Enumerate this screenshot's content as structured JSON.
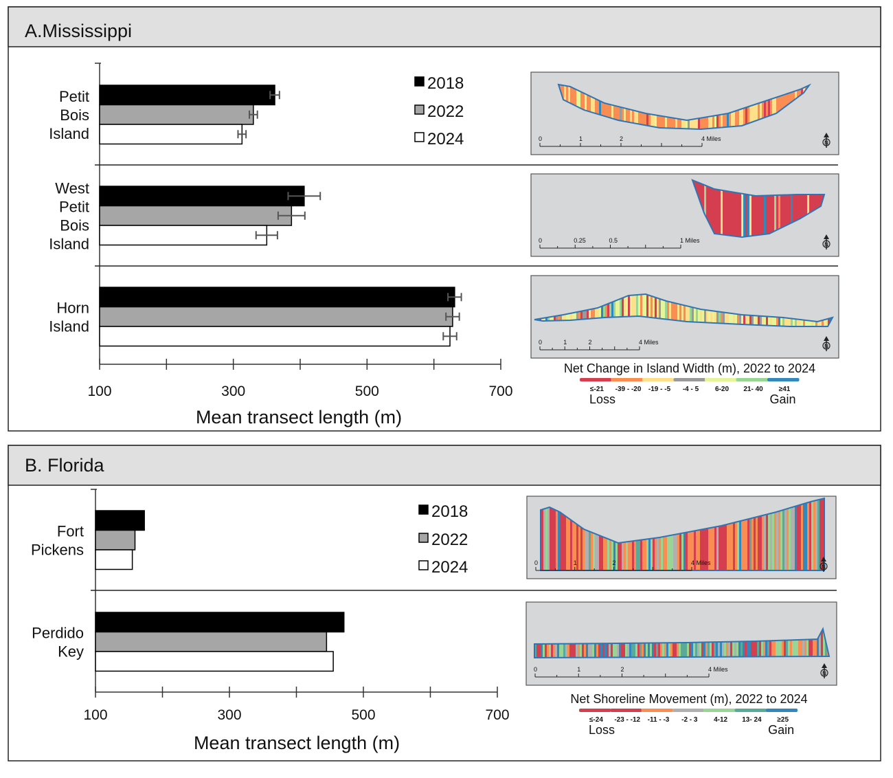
{
  "chart_data": [
    {
      "type": "bar",
      "orientation": "horizontal",
      "title": "A.Mississippi",
      "categories": [
        "Petit Bois Island",
        "West Petit Bois Island",
        "Horn Island"
      ],
      "category_lines": [
        [
          "Petit",
          "Bois",
          "Island"
        ],
        [
          "West",
          "Petit",
          "Bois",
          "Island"
        ],
        [
          "Horn",
          "Island"
        ]
      ],
      "series": [
        {
          "name": "2018",
          "color": "#000000",
          "values": [
            362,
            406,
            631
          ],
          "error": [
            7,
            24,
            10
          ]
        },
        {
          "name": "2022",
          "color": "#a6a6a6",
          "values": [
            330,
            387,
            628
          ],
          "error": [
            6,
            20,
            10
          ]
        },
        {
          "name": "2024",
          "color": "#ffffff",
          "values": [
            313,
            350,
            624
          ],
          "error": [
            6,
            16,
            10
          ]
        }
      ],
      "xlabel": "Mean transect length (m)",
      "xlim": [
        100,
        700
      ],
      "xticks": [
        100,
        200,
        300,
        400,
        500,
        600,
        700
      ],
      "xtick_labels": [
        "100",
        "300",
        "500",
        "700"
      ],
      "legend_position": "top-right",
      "maps": [
        {
          "scale": [
            "0",
            "1",
            "2",
            "4 Miles"
          ]
        },
        {
          "scale": [
            "0",
            "0.25",
            "0.5",
            "1 Miles"
          ]
        },
        {
          "scale": [
            "0",
            "1",
            "2",
            "4 Miles"
          ]
        }
      ],
      "map_legend": {
        "title": "Net Change in Island Width (m), 2022 to 2024",
        "classes": [
          "≤-21",
          "-39 - -20",
          "-19 - -5",
          "-4 - 5",
          "6-20",
          "21- 40",
          "≥41"
        ],
        "colors": [
          "#d53e4f",
          "#f98d52",
          "#fee08b",
          "#9a9a9a",
          "#e6f598",
          "#99d594",
          "#3288bd"
        ],
        "low": "Loss",
        "high": "Gain"
      }
    },
    {
      "type": "bar",
      "orientation": "horizontal",
      "title": "B. Florida",
      "categories": [
        "Fort Pickens",
        "Perdido Key"
      ],
      "category_lines": [
        [
          "Fort",
          "Pickens"
        ],
        [
          "Perdido",
          "Key"
        ]
      ],
      "series": [
        {
          "name": "2018",
          "color": "#000000",
          "values": [
            173,
            471
          ]
        },
        {
          "name": "2022",
          "color": "#a6a6a6",
          "values": [
            159,
            445
          ]
        },
        {
          "name": "2024",
          "color": "#ffffff",
          "values": [
            155,
            455
          ]
        }
      ],
      "xlabel": "Mean transect length (m)",
      "xlim": [
        100,
        700
      ],
      "xticks": [
        100,
        200,
        300,
        400,
        500,
        600,
        700
      ],
      "xtick_labels": [
        "100",
        "300",
        "500",
        "700"
      ],
      "legend_position": "top-right",
      "maps": [
        {
          "scale": [
            "0",
            "1",
            "2",
            "4 Miles"
          ]
        },
        {
          "scale": [
            "0",
            "1",
            "2",
            "4 Miles"
          ]
        }
      ],
      "map_legend": {
        "title": "Net Shoreline Movement (m), 2022 to 2024",
        "classes": [
          "≤-24",
          "-23 - -12",
          "-11 - -3",
          "-2 - 3",
          "4-12",
          "13- 24",
          "≥25"
        ],
        "colors": [
          "#d53e4f",
          "#d53e4f",
          "#f98d52",
          "#b0b0b0",
          "#99d594",
          "#5aaa9a",
          "#3288bd"
        ],
        "low": "Loss",
        "high": "Gain"
      }
    }
  ]
}
